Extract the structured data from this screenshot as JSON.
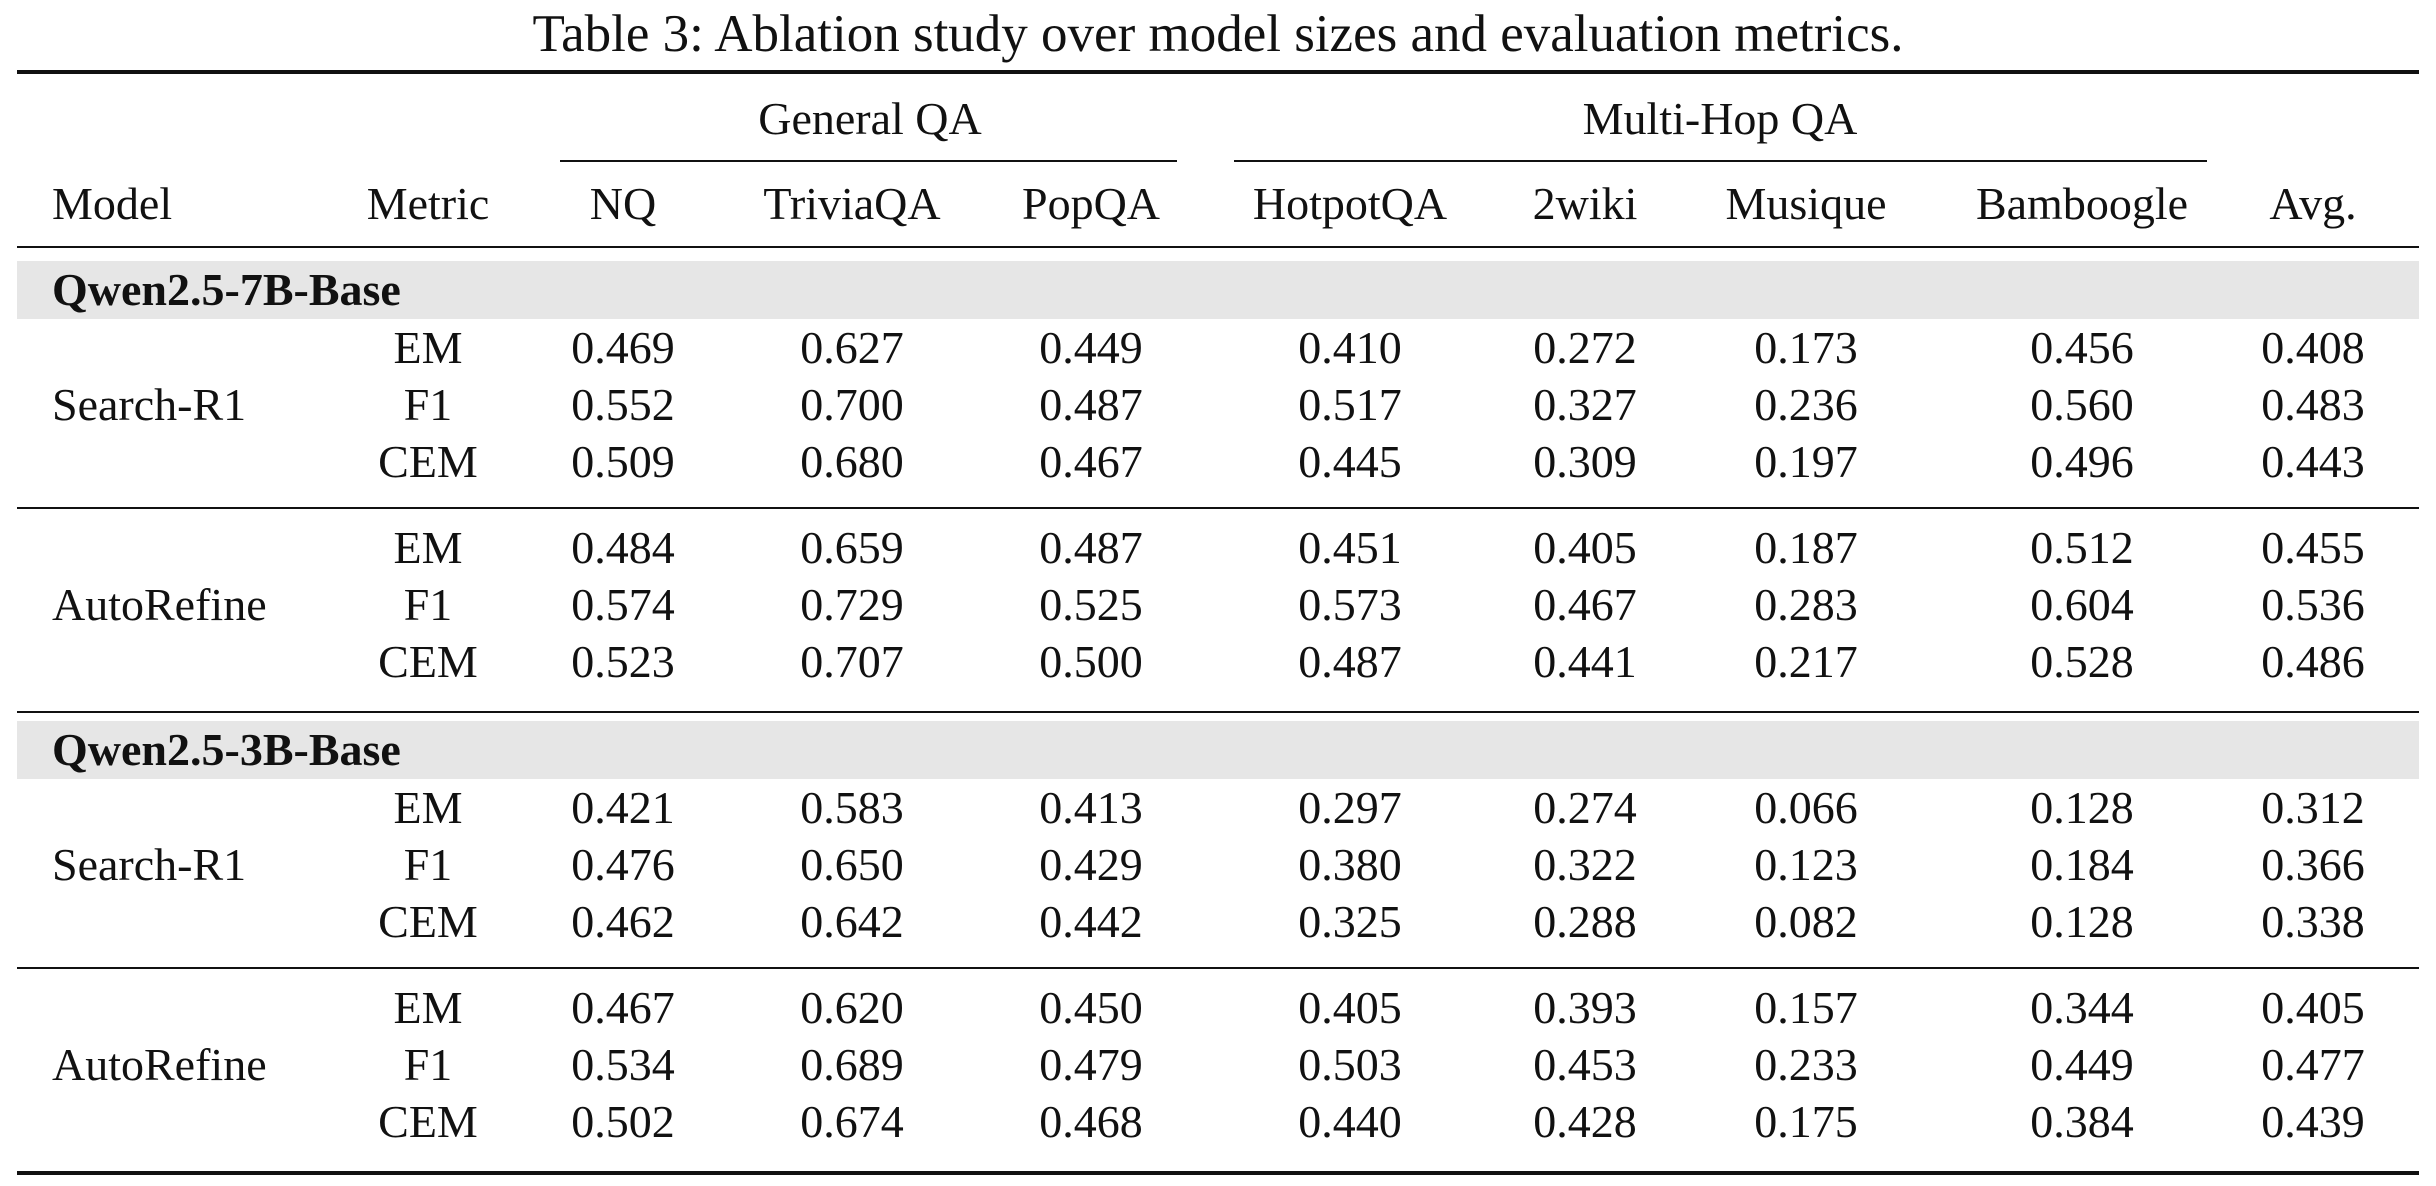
{
  "caption": "Table 3: Ablation study over model sizes and evaluation metrics.",
  "group_headers": {
    "general": "General QA",
    "multihop": "Multi-Hop QA"
  },
  "headers": [
    "Model",
    "Metric",
    "NQ",
    "TriviaQA",
    "PopQA",
    "HotpotQA",
    "2wiki",
    "Musique",
    "Bamboogle",
    "Avg."
  ],
  "sections": [
    {
      "title": "Qwen2.5-7B-Base",
      "blocks": [
        {
          "model": "Search-R1",
          "rows": [
            {
              "metric": "EM",
              "values": [
                "0.469",
                "0.627",
                "0.449",
                "0.410",
                "0.272",
                "0.173",
                "0.456",
                "0.408"
              ]
            },
            {
              "metric": "F1",
              "values": [
                "0.552",
                "0.700",
                "0.487",
                "0.517",
                "0.327",
                "0.236",
                "0.560",
                "0.483"
              ]
            },
            {
              "metric": "CEM",
              "values": [
                "0.509",
                "0.680",
                "0.467",
                "0.445",
                "0.309",
                "0.197",
                "0.496",
                "0.443"
              ]
            }
          ]
        },
        {
          "model": "AutoRefine",
          "rows": [
            {
              "metric": "EM",
              "values": [
                "0.484",
                "0.659",
                "0.487",
                "0.451",
                "0.405",
                "0.187",
                "0.512",
                "0.455"
              ]
            },
            {
              "metric": "F1",
              "values": [
                "0.574",
                "0.729",
                "0.525",
                "0.573",
                "0.467",
                "0.283",
                "0.604",
                "0.536"
              ]
            },
            {
              "metric": "CEM",
              "values": [
                "0.523",
                "0.707",
                "0.500",
                "0.487",
                "0.441",
                "0.217",
                "0.528",
                "0.486"
              ]
            }
          ]
        }
      ]
    },
    {
      "title": "Qwen2.5-3B-Base",
      "blocks": [
        {
          "model": "Search-R1",
          "rows": [
            {
              "metric": "EM",
              "values": [
                "0.421",
                "0.583",
                "0.413",
                "0.297",
                "0.274",
                "0.066",
                "0.128",
                "0.312"
              ]
            },
            {
              "metric": "F1",
              "values": [
                "0.476",
                "0.650",
                "0.429",
                "0.380",
                "0.322",
                "0.123",
                "0.184",
                "0.366"
              ]
            },
            {
              "metric": "CEM",
              "values": [
                "0.462",
                "0.642",
                "0.442",
                "0.325",
                "0.288",
                "0.082",
                "0.128",
                "0.338"
              ]
            }
          ]
        },
        {
          "model": "AutoRefine",
          "rows": [
            {
              "metric": "EM",
              "values": [
                "0.467",
                "0.620",
                "0.450",
                "0.405",
                "0.393",
                "0.157",
                "0.344",
                "0.405"
              ]
            },
            {
              "metric": "F1",
              "values": [
                "0.534",
                "0.689",
                "0.479",
                "0.503",
                "0.453",
                "0.233",
                "0.449",
                "0.477"
              ]
            },
            {
              "metric": "CEM",
              "values": [
                "0.502",
                "0.674",
                "0.468",
                "0.440",
                "0.428",
                "0.175",
                "0.384",
                "0.439"
              ]
            }
          ]
        }
      ]
    }
  ]
}
